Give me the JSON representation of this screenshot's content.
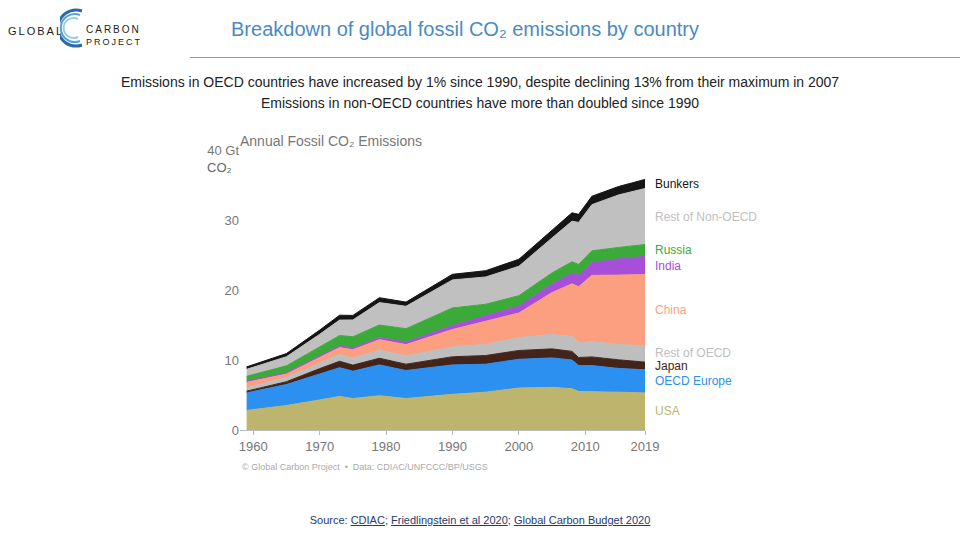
{
  "header": {
    "logo": [
      "GLOBAL",
      "CARBON",
      "PROJECT"
    ],
    "title": "Breakdown of global fossil CO₂ emissions by country",
    "subtitle": [
      "Emissions in OECD countries have increased by 1% since 1990, despite declining 13% from their maximum in 2007",
      "Emissions in non-OECD countries have more than doubled since 1990"
    ]
  },
  "chart_data": {
    "type": "area",
    "stacked": true,
    "grid": false,
    "title": "Annual Fossil CO₂ Emissions",
    "ylabel": "CO₂",
    "note": "© Global Carbon Project  •  Data: CDIAC/UNFCCC/BP/USGS",
    "x": [
      1959,
      1965,
      1970,
      1973,
      1975,
      1979,
      1983,
      1990,
      1995,
      2000,
      2005,
      2008,
      2009,
      2011,
      2015,
      2019
    ],
    "xlim": [
      1958,
      2019
    ],
    "xticks": [
      1960,
      1970,
      1980,
      1990,
      2000,
      2010,
      2019
    ],
    "ylim": [
      0,
      40
    ],
    "yticks": [
      0,
      10,
      20,
      30,
      {
        "value": 40,
        "label": "40 Gt"
      }
    ],
    "series": [
      {
        "name": "USA",
        "color": "#bdb56e",
        "values": [
          2.8,
          3.5,
          4.3,
          4.8,
          4.5,
          4.9,
          4.5,
          5.1,
          5.4,
          6.0,
          6.1,
          5.9,
          5.5,
          5.5,
          5.4,
          5.3
        ]
      },
      {
        "name": "OECD Europe",
        "color": "#2b90f0",
        "values": [
          2.5,
          3.0,
          3.7,
          4.1,
          3.9,
          4.4,
          4.0,
          4.2,
          4.0,
          4.1,
          4.2,
          4.1,
          3.7,
          3.7,
          3.4,
          3.3
        ]
      },
      {
        "name": "Japan",
        "color": "#42241a",
        "values": [
          0.25,
          0.4,
          0.77,
          0.92,
          0.87,
          0.95,
          0.9,
          1.16,
          1.24,
          1.26,
          1.29,
          1.23,
          1.16,
          1.24,
          1.23,
          1.1
        ]
      },
      {
        "name": "Rest of OECD",
        "color": "#bebebe",
        "values": [
          0.5,
          0.6,
          0.8,
          0.95,
          1.0,
          1.15,
          1.2,
          1.4,
          1.6,
          1.85,
          2.05,
          2.15,
          2.1,
          2.15,
          2.2,
          2.3
        ]
      },
      {
        "name": "China",
        "color": "#fb9f80",
        "values": [
          0.8,
          0.5,
          0.8,
          1.0,
          1.2,
          1.5,
          1.6,
          2.5,
          3.3,
          3.5,
          6.0,
          7.5,
          8.0,
          9.5,
          9.9,
          10.2
        ]
      },
      {
        "name": "India",
        "color": "#a74fd8",
        "values": [
          0.12,
          0.17,
          0.2,
          0.23,
          0.25,
          0.3,
          0.37,
          0.58,
          0.77,
          0.98,
          1.2,
          1.5,
          1.65,
          1.8,
          2.3,
          2.6
        ]
      },
      {
        "name": "Russia",
        "color": "#3aaa38",
        "values": [
          0.7,
          1.0,
          1.3,
          1.5,
          1.6,
          1.8,
          1.9,
          2.5,
          1.65,
          1.5,
          1.6,
          1.65,
          1.55,
          1.7,
          1.65,
          1.7
        ]
      },
      {
        "name": "Rest of Non-OECD",
        "color": "#c0c0c0",
        "values": [
          1.0,
          1.3,
          1.8,
          2.2,
          2.4,
          3.2,
          3.2,
          4.0,
          3.9,
          4.2,
          5.0,
          5.8,
          6.0,
          6.6,
          7.5,
          8.0
        ]
      },
      {
        "name": "Bunkers",
        "color": "#151515",
        "values": [
          0.35,
          0.45,
          0.6,
          0.7,
          0.65,
          0.7,
          0.6,
          0.8,
          0.9,
          1.0,
          1.1,
          1.2,
          1.15,
          1.2,
          1.2,
          1.3
        ]
      }
    ]
  },
  "footer": {
    "source_prefix": "Source: ",
    "source_links": [
      "CDIAC",
      "Friedlingstein et al 2020",
      "Global Carbon Budget 2020"
    ],
    "source_separator": "; "
  }
}
